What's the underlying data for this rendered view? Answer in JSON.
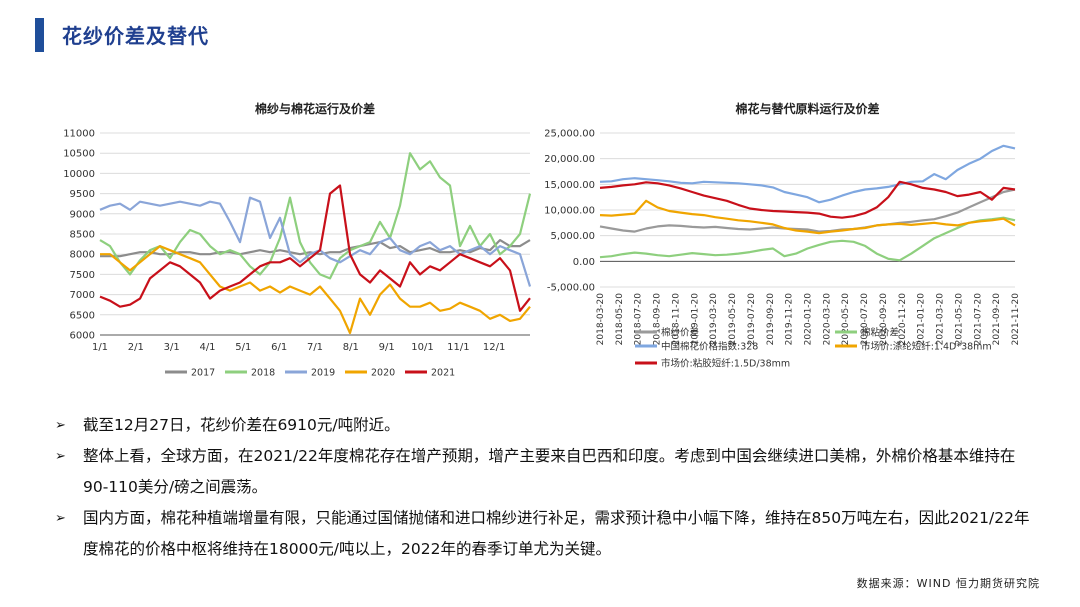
{
  "header": {
    "title": "花纱价差及替代"
  },
  "chart_data": [
    {
      "type": "line",
      "title": "棉纱与棉花运行及价差",
      "x_ticks": [
        "1/1",
        "2/1",
        "3/1",
        "4/1",
        "5/1",
        "6/1",
        "7/1",
        "8/1",
        "9/1",
        "10/1",
        "11/1",
        "12/1"
      ],
      "ylim": [
        6000,
        11000
      ],
      "yticks": [
        6000,
        6500,
        7000,
        7500,
        8000,
        8500,
        9000,
        9500,
        10000,
        10500,
        11000
      ],
      "legend": "bottom",
      "series": [
        {
          "name": "2017",
          "color": "#8c8c8c",
          "values": [
            7950,
            7950,
            7950,
            8000,
            8050,
            8050,
            8000,
            8000,
            8050,
            8050,
            8000,
            8000,
            8050,
            8050,
            8000,
            8050,
            8100,
            8050,
            8100,
            8050,
            8000,
            8050,
            8000,
            8050,
            8050,
            8150,
            8200,
            8250,
            8300,
            8150,
            8200,
            8050,
            8100,
            8150,
            8050,
            8050,
            8100,
            8050,
            8150,
            8100,
            8350,
            8200,
            8200,
            8350
          ]
        },
        {
          "name": "2018",
          "color": "#8ecf7e",
          "values": [
            8350,
            8200,
            7800,
            7500,
            7850,
            8100,
            8200,
            7900,
            8300,
            8600,
            8500,
            8200,
            8000,
            8100,
            8000,
            7700,
            7500,
            7800,
            8400,
            9400,
            8300,
            7800,
            7500,
            7400,
            7900,
            8100,
            8200,
            8300,
            8800,
            8400,
            9200,
            10500,
            10100,
            10300,
            9900,
            9700,
            8200,
            8700,
            8200,
            8500,
            8000,
            8200,
            8500,
            9500
          ]
        },
        {
          "name": "2019",
          "color": "#8aa5d8",
          "values": [
            9100,
            9200,
            9250,
            9100,
            9300,
            9250,
            9200,
            9250,
            9300,
            9250,
            9200,
            9300,
            9250,
            8800,
            8300,
            9400,
            9300,
            8400,
            8900,
            8000,
            7800,
            8000,
            8100,
            7900,
            7800,
            7950,
            8100,
            8000,
            8300,
            8400,
            8100,
            8000,
            8200,
            8300,
            8100,
            8200,
            8000,
            8100,
            8200,
            8000,
            8200,
            8100,
            8000,
            7200
          ]
        },
        {
          "name": "2020",
          "color": "#f0a500",
          "values": [
            8000,
            8000,
            7800,
            7600,
            7800,
            8000,
            8200,
            8100,
            8000,
            7900,
            7800,
            7500,
            7200,
            7100,
            7200,
            7300,
            7100,
            7200,
            7050,
            7200,
            7100,
            7000,
            7200,
            6900,
            6600,
            6050,
            6900,
            6500,
            7000,
            7250,
            6900,
            6700,
            6700,
            6800,
            6600,
            6650,
            6800,
            6700,
            6600,
            6400,
            6500,
            6350,
            6400,
            6700
          ]
        },
        {
          "name": "2021",
          "color": "#c8101a",
          "values": [
            6950,
            6850,
            6700,
            6750,
            6900,
            7400,
            7600,
            7800,
            7700,
            7500,
            7300,
            6900,
            7100,
            7200,
            7300,
            7500,
            7700,
            7800,
            7800,
            7900,
            7700,
            7900,
            8100,
            9500,
            9700,
            8000,
            7500,
            7300,
            7600,
            7400,
            7200,
            7800,
            7500,
            7700,
            7600,
            7800,
            8000,
            7900,
            7800,
            7700,
            7900,
            7600,
            6600,
            6910
          ]
        }
      ]
    },
    {
      "type": "line",
      "title": "棉花与替代原料运行及价差",
      "x_ticks": [
        "2018-03-20",
        "2018-05-20",
        "2018-07-20",
        "2018-09-20",
        "2018-11-20",
        "2019-01-20",
        "2019-03-20",
        "2019-05-20",
        "2019-07-20",
        "2019-09-20",
        "2019-11-20",
        "2020-01-20",
        "2020-03-20",
        "2020-05-20",
        "2020-07-20",
        "2020-09-20",
        "2020-11-20",
        "2021-01-20",
        "2021-03-20",
        "2021-05-20",
        "2021-07-20",
        "2021-09-20",
        "2021-11-20"
      ],
      "ylim": [
        -5000,
        25000
      ],
      "yticks": [
        "-5,000.00",
        "0.00",
        "5,000.00",
        "10,000.00",
        "15,000.00",
        "20,000.00",
        "25,000.00"
      ],
      "legend": "bottom",
      "series": [
        {
          "name": "中国棉花价格指数:328",
          "color": "#7fa7e0",
          "values": [
            15500,
            15600,
            16000,
            16200,
            16000,
            15800,
            15600,
            15300,
            15200,
            15500,
            15400,
            15300,
            15200,
            15000,
            14800,
            14400,
            13500,
            13000,
            12500,
            11500,
            12000,
            12800,
            13500,
            14000,
            14200,
            14500,
            15000,
            15500,
            15600,
            17000,
            16000,
            17800,
            19000,
            20000,
            21500,
            22500,
            22000
          ]
        },
        {
          "name": "棉纱价差",
          "color": "#9a9a9a",
          "values": [
            6800,
            6400,
            6000,
            5800,
            6400,
            6800,
            7000,
            6900,
            6700,
            6600,
            6700,
            6500,
            6300,
            6200,
            6400,
            6600,
            6400,
            6300,
            6200,
            5800,
            5900,
            6200,
            6300,
            6600,
            7000,
            7200,
            7500,
            7700,
            8000,
            8200,
            8800,
            9500,
            10500,
            11500,
            12500,
            13500,
            14000
          ]
        },
        {
          "name": "棉粘价差",
          "color": "#8ecf7e",
          "values": [
            800,
            1000,
            1400,
            1700,
            1500,
            1200,
            1000,
            1300,
            1600,
            1400,
            1200,
            1300,
            1500,
            1800,
            2200,
            2500,
            1000,
            1500,
            2500,
            3200,
            3800,
            4000,
            3800,
            3000,
            1500,
            500,
            200,
            1500,
            3000,
            4500,
            5500,
            6500,
            7500,
            8000,
            8200,
            8500,
            8000
          ]
        },
        {
          "name": "市场价:涤纶短纤:1.4D*38mm",
          "color": "#f0a500",
          "values": [
            9000,
            8900,
            9100,
            9300,
            11800,
            10500,
            9800,
            9500,
            9200,
            9000,
            8600,
            8300,
            8000,
            7800,
            7500,
            7200,
            6500,
            6000,
            5800,
            5500,
            5800,
            6000,
            6300,
            6500,
            7000,
            7200,
            7300,
            7100,
            7300,
            7500,
            7200,
            7000,
            7500,
            7800,
            8000,
            8300,
            7000
          ]
        },
        {
          "name": "市场价:粘胶短纤:1.5D/38mm",
          "color": "#c8101a",
          "values": [
            14300,
            14500,
            14800,
            15000,
            15400,
            15200,
            14800,
            14200,
            13500,
            12800,
            12300,
            11800,
            11000,
            10300,
            10000,
            9800,
            9700,
            9600,
            9500,
            9300,
            8700,
            8500,
            8800,
            9400,
            10500,
            12500,
            15500,
            15000,
            14300,
            14000,
            13500,
            12700,
            13000,
            13500,
            12000,
            14300,
            14000
          ]
        }
      ]
    }
  ],
  "bullets": [
    "截至12月27日，花纱价差在6910元/吨附近。",
    "整体上看，全球方面，在2021/22年度棉花存在增产预期，增产主要来自巴西和印度。考虑到中国会继续进口美棉，外棉价格基本维持在90-110美分/磅之间震荡。",
    "国内方面，棉花种植端增量有限，只能通过国储抛储和进口棉纱进行补足，需求预计稳中小幅下降，维持在850万吨左右，因此2021/22年度棉花的价格中枢将维持在18000元/吨以上，2022年的春季订单尤为关键。"
  ],
  "source": "数据来源：WIND 恒力期货研究院",
  "icons": {
    "bullet": "arrow-right-icon"
  }
}
